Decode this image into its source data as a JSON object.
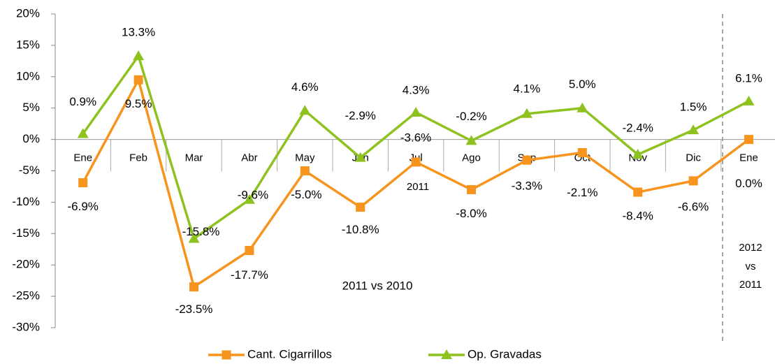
{
  "chart_data": {
    "type": "line",
    "categories": [
      "Ene",
      "Feb",
      "Mar",
      "Abr",
      "May",
      "Jun",
      "Jul",
      "Ago",
      "Sep",
      "Oct",
      "Nov",
      "Dic",
      "Ene"
    ],
    "series": [
      {
        "name": "Cant. Cigarrillos",
        "color": "#f7941d",
        "marker": "square",
        "values": [
          -6.9,
          9.5,
          -23.5,
          -17.7,
          -5.0,
          -10.8,
          -3.6,
          -8.0,
          -3.3,
          -2.1,
          -8.4,
          -6.6,
          0.0
        ],
        "value_labels": [
          "-6.9%",
          "9.5%",
          "-23.5%",
          "-17.7%",
          "-5.0%",
          "-10.8%",
          "-3.6%",
          "-8.0%",
          "-3.3%",
          "-2.1%",
          "-8.4%",
          "-6.6%",
          "0.0%"
        ]
      },
      {
        "name": "Op. Gravadas",
        "color": "#8dc21f",
        "marker": "triangle",
        "values": [
          0.9,
          13.3,
          -15.8,
          -9.6,
          4.6,
          -2.9,
          4.3,
          -0.2,
          4.1,
          5.0,
          -2.4,
          1.5,
          6.1
        ],
        "value_labels": [
          "0.9%",
          "13.3%",
          "-15.8%",
          "-9.6%",
          "4.6%",
          "-2.9%",
          "4.3%",
          "-0.2%",
          "4.1%",
          "5.0%",
          "-2.4%",
          "1.5%",
          "6.1%"
        ]
      }
    ],
    "ylim": [
      -30,
      20
    ],
    "yticks": [
      {
        "value": -30,
        "label": "-30%"
      },
      {
        "value": -25,
        "label": "-25%"
      },
      {
        "value": -20,
        "label": "-20%"
      },
      {
        "value": -15,
        "label": "-15%"
      },
      {
        "value": -10,
        "label": "-10%"
      },
      {
        "value": -5,
        "label": "-5%"
      },
      {
        "value": 0,
        "label": "0%"
      },
      {
        "value": 5,
        "label": "5%"
      },
      {
        "value": 10,
        "label": "10%"
      },
      {
        "value": 15,
        "label": "15%"
      },
      {
        "value": 20,
        "label": "20%"
      }
    ],
    "annotations": [
      "2011",
      "2011 vs 2010",
      "2012",
      "vs",
      "2011"
    ],
    "legend": "bottom"
  }
}
